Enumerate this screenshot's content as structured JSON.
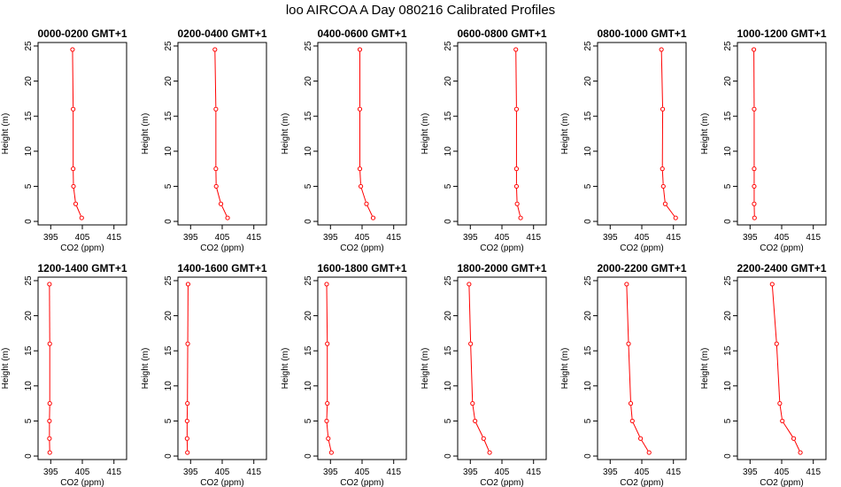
{
  "figure": {
    "title": "loo AIRCOA A  Day 080216  Calibrated Profiles"
  },
  "chart_data": [
    {
      "type": "line",
      "title": "0000-0200 GMT+1",
      "xlabel": "CO2 (ppm)",
      "ylabel": "Height (m)",
      "xlim": [
        391,
        419
      ],
      "ylim": [
        -0.5,
        25.5
      ],
      "xticks": [
        395,
        405,
        415
      ],
      "yticks": [
        0,
        5,
        10,
        15,
        20,
        25
      ],
      "grid": false,
      "series": [
        {
          "color": "#ff0000",
          "points": [
            [
              404.8,
              0.5
            ],
            [
              402.9,
              2.5
            ],
            [
              402.2,
              5
            ],
            [
              402.1,
              7.5
            ],
            [
              402.1,
              16
            ],
            [
              401.9,
              24.5
            ]
          ]
        }
      ]
    },
    {
      "type": "line",
      "title": "0200-0400 GMT+1",
      "xlabel": "CO2 (ppm)",
      "ylabel": "Height (m)",
      "xlim": [
        391,
        419
      ],
      "ylim": [
        -0.5,
        25.5
      ],
      "xticks": [
        395,
        405,
        415
      ],
      "yticks": [
        0,
        5,
        10,
        15,
        20,
        25
      ],
      "grid": false,
      "series": [
        {
          "color": "#ff0000",
          "points": [
            [
              406.7,
              0.5
            ],
            [
              404.6,
              2.5
            ],
            [
              403.1,
              5
            ],
            [
              403.0,
              7.5
            ],
            [
              403.0,
              16
            ],
            [
              402.7,
              24.5
            ]
          ]
        }
      ]
    },
    {
      "type": "line",
      "title": "0400-0600 GMT+1",
      "xlabel": "CO2 (ppm)",
      "ylabel": "Height (m)",
      "xlim": [
        391,
        419
      ],
      "ylim": [
        -0.5,
        25.5
      ],
      "xticks": [
        395,
        405,
        415
      ],
      "yticks": [
        0,
        5,
        10,
        15,
        20,
        25
      ],
      "grid": false,
      "series": [
        {
          "color": "#ff0000",
          "points": [
            [
              408.5,
              0.5
            ],
            [
              406.4,
              2.5
            ],
            [
              404.6,
              5
            ],
            [
              404.3,
              7.5
            ],
            [
              404.3,
              16
            ],
            [
              404.3,
              24.5
            ]
          ]
        }
      ]
    },
    {
      "type": "line",
      "title": "0600-0800 GMT+1",
      "xlabel": "CO2 (ppm)",
      "ylabel": "Height (m)",
      "xlim": [
        391,
        419
      ],
      "ylim": [
        -0.5,
        25.5
      ],
      "xticks": [
        395,
        405,
        415
      ],
      "yticks": [
        0,
        5,
        10,
        15,
        20,
        25
      ],
      "grid": false,
      "series": [
        {
          "color": "#ff0000",
          "points": [
            [
              410.9,
              0.5
            ],
            [
              409.8,
              2.5
            ],
            [
              409.6,
              5
            ],
            [
              409.6,
              7.5
            ],
            [
              409.6,
              16
            ],
            [
              409.4,
              24.5
            ]
          ]
        }
      ]
    },
    {
      "type": "line",
      "title": "0800-1000 GMT+1",
      "xlabel": "CO2 (ppm)",
      "ylabel": "Height (m)",
      "xlim": [
        391,
        419
      ],
      "ylim": [
        -0.5,
        25.5
      ],
      "xticks": [
        395,
        405,
        415
      ],
      "yticks": [
        0,
        5,
        10,
        15,
        20,
        25
      ],
      "grid": false,
      "series": [
        {
          "color": "#ff0000",
          "points": [
            [
              415.7,
              0.5
            ],
            [
              412.4,
              2.5
            ],
            [
              411.8,
              5
            ],
            [
              411.5,
              7.5
            ],
            [
              411.6,
              16
            ],
            [
              411.2,
              24.5
            ]
          ]
        }
      ]
    },
    {
      "type": "line",
      "title": "1000-1200 GMT+1",
      "xlabel": "CO2 (ppm)",
      "ylabel": "Height (m)",
      "xlim": [
        391,
        419
      ],
      "ylim": [
        -0.5,
        25.5
      ],
      "xticks": [
        395,
        405,
        415
      ],
      "yticks": [
        0,
        5,
        10,
        15,
        20,
        25
      ],
      "grid": false,
      "series": [
        {
          "color": "#ff0000",
          "points": [
            [
              396.4,
              0.5
            ],
            [
              396.3,
              2.5
            ],
            [
              396.3,
              5
            ],
            [
              396.3,
              7.5
            ],
            [
              396.3,
              16
            ],
            [
              396.2,
              24.5
            ]
          ]
        }
      ]
    },
    {
      "type": "line",
      "title": "1200-1400 GMT+1",
      "xlabel": "CO2 (ppm)",
      "ylabel": "Height (m)",
      "xlim": [
        391,
        419
      ],
      "ylim": [
        -0.5,
        25.5
      ],
      "xticks": [
        395,
        405,
        415
      ],
      "yticks": [
        0,
        5,
        10,
        15,
        20,
        25
      ],
      "grid": false,
      "series": [
        {
          "color": "#ff0000",
          "points": [
            [
              394.7,
              0.5
            ],
            [
              394.6,
              2.5
            ],
            [
              394.6,
              5
            ],
            [
              394.7,
              7.5
            ],
            [
              394.7,
              16
            ],
            [
              394.6,
              24.5
            ]
          ]
        }
      ]
    },
    {
      "type": "line",
      "title": "1400-1600 GMT+1",
      "xlabel": "CO2 (ppm)",
      "ylabel": "Height (m)",
      "xlim": [
        391,
        419
      ],
      "ylim": [
        -0.5,
        25.5
      ],
      "xticks": [
        395,
        405,
        415
      ],
      "yticks": [
        0,
        5,
        10,
        15,
        20,
        25
      ],
      "grid": false,
      "series": [
        {
          "color": "#ff0000",
          "points": [
            [
              394.0,
              0.5
            ],
            [
              393.9,
              2.5
            ],
            [
              393.9,
              5
            ],
            [
              394.0,
              7.5
            ],
            [
              394.1,
              16
            ],
            [
              394.2,
              24.5
            ]
          ]
        }
      ]
    },
    {
      "type": "line",
      "title": "1600-1800 GMT+1",
      "xlabel": "CO2 (ppm)",
      "ylabel": "Height (m)",
      "xlim": [
        391,
        419
      ],
      "ylim": [
        -0.5,
        25.5
      ],
      "xticks": [
        395,
        405,
        415
      ],
      "yticks": [
        0,
        5,
        10,
        15,
        20,
        25
      ],
      "grid": false,
      "series": [
        {
          "color": "#ff0000",
          "points": [
            [
              395.3,
              0.5
            ],
            [
              394.3,
              2.5
            ],
            [
              393.8,
              5
            ],
            [
              394.0,
              7.5
            ],
            [
              394.0,
              16
            ],
            [
              393.8,
              24.5
            ]
          ]
        }
      ]
    },
    {
      "type": "line",
      "title": "1800-2000 GMT+1",
      "xlabel": "CO2 (ppm)",
      "ylabel": "Height (m)",
      "xlim": [
        391,
        419
      ],
      "ylim": [
        -0.5,
        25.5
      ],
      "xticks": [
        395,
        405,
        415
      ],
      "yticks": [
        0,
        5,
        10,
        15,
        20,
        25
      ],
      "grid": false,
      "series": [
        {
          "color": "#ff0000",
          "points": [
            [
              401.1,
              0.5
            ],
            [
              399.2,
              2.5
            ],
            [
              396.5,
              5
            ],
            [
              395.7,
              7.5
            ],
            [
              395.1,
              16
            ],
            [
              394.6,
              24.5
            ]
          ]
        }
      ]
    },
    {
      "type": "line",
      "title": "2000-2200 GMT+1",
      "xlabel": "CO2 (ppm)",
      "ylabel": "Height (m)",
      "xlim": [
        391,
        419
      ],
      "ylim": [
        -0.5,
        25.5
      ],
      "xticks": [
        395,
        405,
        415
      ],
      "yticks": [
        0,
        5,
        10,
        15,
        20,
        25
      ],
      "grid": false,
      "series": [
        {
          "color": "#ff0000",
          "points": [
            [
              407.3,
              0.5
            ],
            [
              404.6,
              2.5
            ],
            [
              402.0,
              5
            ],
            [
              401.5,
              7.5
            ],
            [
              400.8,
              16
            ],
            [
              400.2,
              24.5
            ]
          ]
        }
      ]
    },
    {
      "type": "line",
      "title": "2200-2400 GMT+1",
      "xlabel": "CO2 (ppm)",
      "ylabel": "Height (m)",
      "xlim": [
        391,
        419
      ],
      "ylim": [
        -0.5,
        25.5
      ],
      "xticks": [
        395,
        405,
        415
      ],
      "yticks": [
        0,
        5,
        10,
        15,
        20,
        25
      ],
      "grid": false,
      "series": [
        {
          "color": "#ff0000",
          "points": [
            [
              410.9,
              0.5
            ],
            [
              408.8,
              2.5
            ],
            [
              405.2,
              5
            ],
            [
              404.4,
              7.5
            ],
            [
              403.4,
              16
            ],
            [
              402.0,
              24.5
            ]
          ]
        }
      ]
    }
  ]
}
